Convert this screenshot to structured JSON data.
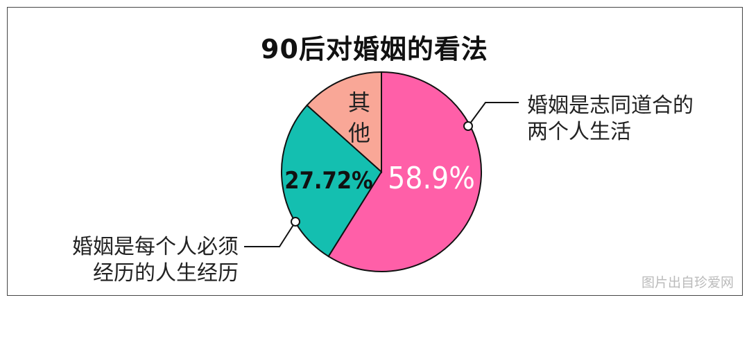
{
  "chart_data": {
    "type": "pie",
    "title": "90后对婚姻的看法",
    "start": "top",
    "direction": "clockwise",
    "slices": [
      {
        "label": "婚姻是志同道合的两个人生活",
        "label_lines": [
          "婚姻是志同道合的",
          "两个人生活"
        ],
        "value": 58.9,
        "value_label": "58.9%",
        "color": "#FF5FA8",
        "value_text_color": "#FFFFFF"
      },
      {
        "label": "婚姻是每个人必须经历的人生经历",
        "label_lines": [
          "婚姻是每个人必须",
          "经历的人生经历"
        ],
        "value": 27.72,
        "value_label": "27.72%",
        "color": "#14BFB0",
        "value_text_color": "#111111"
      },
      {
        "label": "其他",
        "label_lines": [
          "其",
          "他"
        ],
        "value": 13.38,
        "value_label": "",
        "color": "#F9A797",
        "value_text_color": "#222222"
      }
    ]
  },
  "watermark": "图片出自珍爱网"
}
